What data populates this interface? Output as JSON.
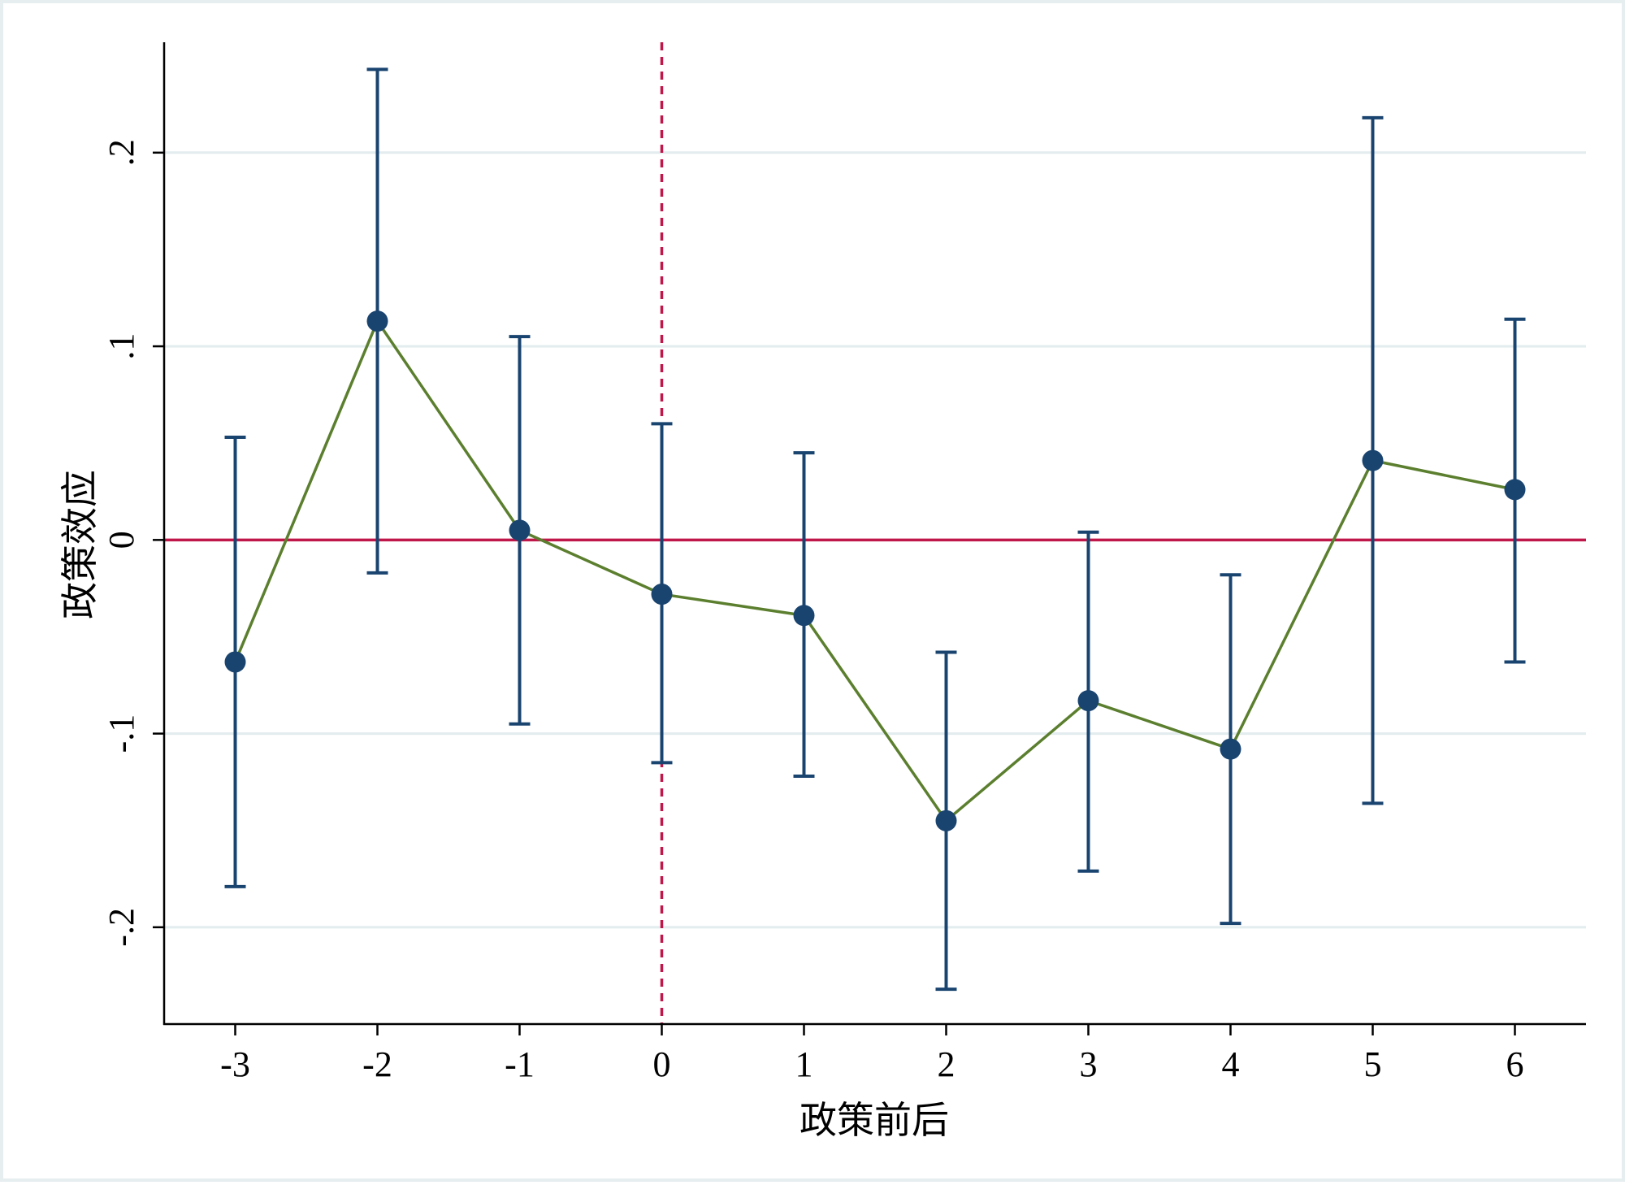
{
  "chart_data": {
    "type": "line",
    "title": "",
    "xlabel": "政策前后",
    "ylabel": "政策效应",
    "x": [
      -3,
      -2,
      -1,
      0,
      1,
      2,
      3,
      4,
      5,
      6
    ],
    "x_tick_labels": [
      "-3",
      "-2",
      "-1",
      "0",
      "1",
      "2",
      "3",
      "4",
      "5",
      "6"
    ],
    "xlim": [
      -3.5,
      6.5
    ],
    "ylim": [
      -0.25,
      0.257
    ],
    "y_ticks": [
      -0.2,
      -0.1,
      0,
      0.1,
      0.2
    ],
    "y_tick_labels": [
      "-.2",
      "-.1",
      "0",
      ".1",
      ".2"
    ],
    "grid": "horizontal",
    "reference_lines": {
      "horizontal_y": 0,
      "vertical_x": 0
    },
    "series": [
      {
        "values": [
          -0.063,
          0.113,
          0.005,
          -0.028,
          -0.039,
          -0.145,
          -0.083,
          -0.108,
          0.041,
          0.026
        ],
        "ci_lower": [
          -0.179,
          -0.017,
          -0.095,
          -0.115,
          -0.122,
          -0.232,
          -0.171,
          -0.198,
          -0.136,
          -0.063
        ],
        "ci_upper": [
          0.053,
          0.243,
          0.105,
          0.06,
          0.045,
          -0.058,
          0.004,
          -0.018,
          0.218,
          0.114
        ]
      }
    ],
    "colors": {
      "line": "#5b7f2e",
      "marker": "#1a4470",
      "errorbar": "#1a4470",
      "zero_line": "#c0174a",
      "event_line": "#c0174a",
      "grid": "#e3ecee",
      "axis": "#000000"
    }
  }
}
